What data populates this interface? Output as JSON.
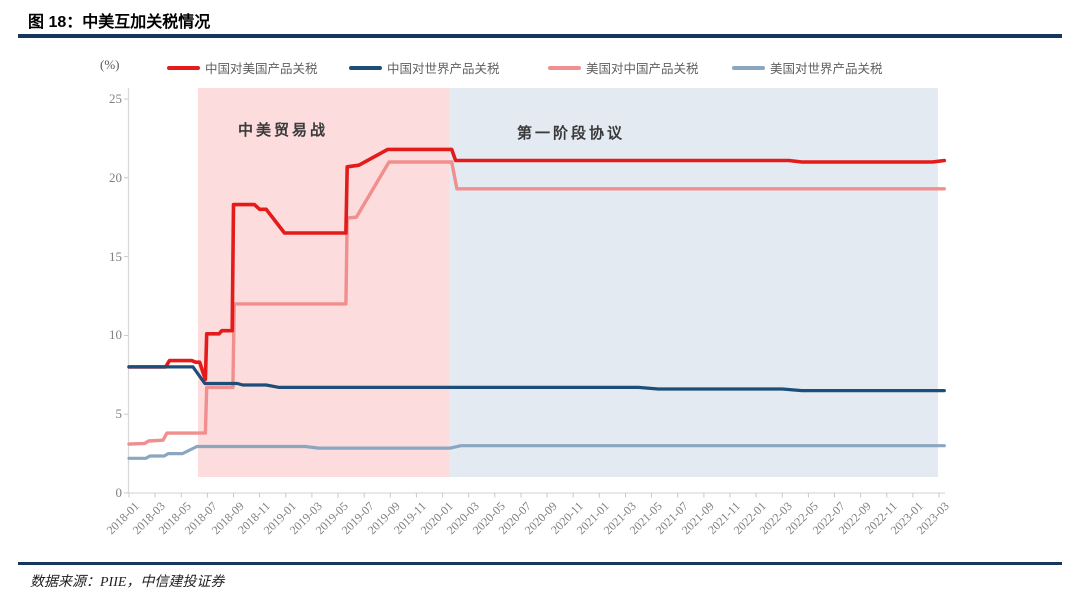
{
  "header": {
    "title": "图 18：中美互加关税情况"
  },
  "footer": {
    "source": "数据来源：PIIE，中信建投证券"
  },
  "chart_data": {
    "type": "line",
    "title": "中美互加关税情况",
    "unit_label": "(%)",
    "xlabel": "",
    "ylabel": "(%)",
    "ylim": [
      0,
      25
    ],
    "y_ticks": [
      0,
      5,
      10,
      15,
      20,
      25
    ],
    "grid": false,
    "legend_position": "top",
    "x_tick_step_months": 2,
    "x_months_total": 62,
    "x_labels": [
      "2018-01",
      "2018-03",
      "2018-05",
      "2018-07",
      "2018-09",
      "2018-11",
      "2019-01",
      "2019-03",
      "2019-05",
      "2019-07",
      "2019-09",
      "2019-11",
      "2020-01",
      "2020-03",
      "2020-05",
      "2020-07",
      "2020-09",
      "2020-11",
      "2021-01",
      "2021-03",
      "2021-05",
      "2021-07",
      "2021-09",
      "2021-11",
      "2022-01",
      "2022-03",
      "2022-05",
      "2022-07",
      "2022-09",
      "2022-11",
      "2023-01",
      "2023-03"
    ],
    "bands": [
      {
        "id": "trade-war",
        "label": "中美贸易战",
        "start_month": 5.28,
        "end_month": 24.49,
        "color": "#fcdcdc"
      },
      {
        "id": "phase-one",
        "label": "第一阶段协议",
        "start_month": 24.49,
        "end_month": 61.92,
        "color": "#e4eaf2"
      }
    ],
    "annotations": [
      {
        "id": "trade-war-label",
        "text": "中美贸易战"
      },
      {
        "id": "phase-one-label",
        "text": "第一阶段协议"
      }
    ],
    "series": [
      {
        "id": "china-us",
        "name": "中国对美国产品关税",
        "color": "#e31b1b",
        "width": 3.6,
        "z": 3,
        "points": [
          [
            0,
            8
          ],
          [
            2.8,
            8
          ],
          [
            3.1,
            8.4
          ],
          [
            4.8,
            8.4
          ],
          [
            5.1,
            8.3
          ],
          [
            5.4,
            8.3
          ],
          [
            5.85,
            7.2
          ],
          [
            5.95,
            10.1
          ],
          [
            6.9,
            10.1
          ],
          [
            7.1,
            10.3
          ],
          [
            7.9,
            10.3
          ],
          [
            8,
            18.3
          ],
          [
            9.6,
            18.3
          ],
          [
            10,
            18
          ],
          [
            10.5,
            18
          ],
          [
            11.9,
            16.5
          ],
          [
            16.6,
            16.5
          ],
          [
            16.7,
            20.7
          ],
          [
            17.6,
            20.8
          ],
          [
            19.8,
            21.8
          ],
          [
            24.7,
            21.8
          ],
          [
            25,
            21.1
          ],
          [
            50.5,
            21.1
          ],
          [
            51.5,
            21
          ],
          [
            61.5,
            21
          ],
          [
            62.4,
            21.1
          ]
        ]
      },
      {
        "id": "china-world",
        "name": "中国对世界产品关税",
        "color": "#1d4e79",
        "width": 3.2,
        "z": 4,
        "points": [
          [
            0,
            8
          ],
          [
            4.9,
            8
          ],
          [
            5.8,
            6.95
          ],
          [
            8.3,
            6.95
          ],
          [
            8.7,
            6.85
          ],
          [
            10.5,
            6.85
          ],
          [
            11.5,
            6.7
          ],
          [
            39,
            6.7
          ],
          [
            40.5,
            6.6
          ],
          [
            50,
            6.6
          ],
          [
            51.5,
            6.5
          ],
          [
            62.4,
            6.5
          ]
        ]
      },
      {
        "id": "us-china",
        "name": "美国对中国产品关税",
        "color": "#f18e8e",
        "width": 3.4,
        "z": 2,
        "points": [
          [
            0,
            3.1
          ],
          [
            1.2,
            3.15
          ],
          [
            1.5,
            3.3
          ],
          [
            2.6,
            3.35
          ],
          [
            2.9,
            3.8
          ],
          [
            5.85,
            3.8
          ],
          [
            5.95,
            6.7
          ],
          [
            7.95,
            6.7
          ],
          [
            8.05,
            12
          ],
          [
            16.6,
            12
          ],
          [
            16.7,
            17.45
          ],
          [
            17.4,
            17.5
          ],
          [
            19.9,
            21
          ],
          [
            24.7,
            21
          ],
          [
            25.1,
            19.3
          ],
          [
            62.4,
            19.3
          ]
        ]
      },
      {
        "id": "us-world",
        "name": "美国对世界产品关税",
        "color": "#8ba6c0",
        "width": 3.2,
        "z": 1,
        "points": [
          [
            0,
            2.2
          ],
          [
            1.3,
            2.2
          ],
          [
            1.6,
            2.35
          ],
          [
            2.7,
            2.35
          ],
          [
            3,
            2.5
          ],
          [
            4.1,
            2.5
          ],
          [
            5.2,
            2.95
          ],
          [
            13.5,
            2.95
          ],
          [
            14.5,
            2.85
          ],
          [
            24.6,
            2.85
          ],
          [
            25.4,
            3
          ],
          [
            62.4,
            3
          ]
        ]
      }
    ]
  }
}
